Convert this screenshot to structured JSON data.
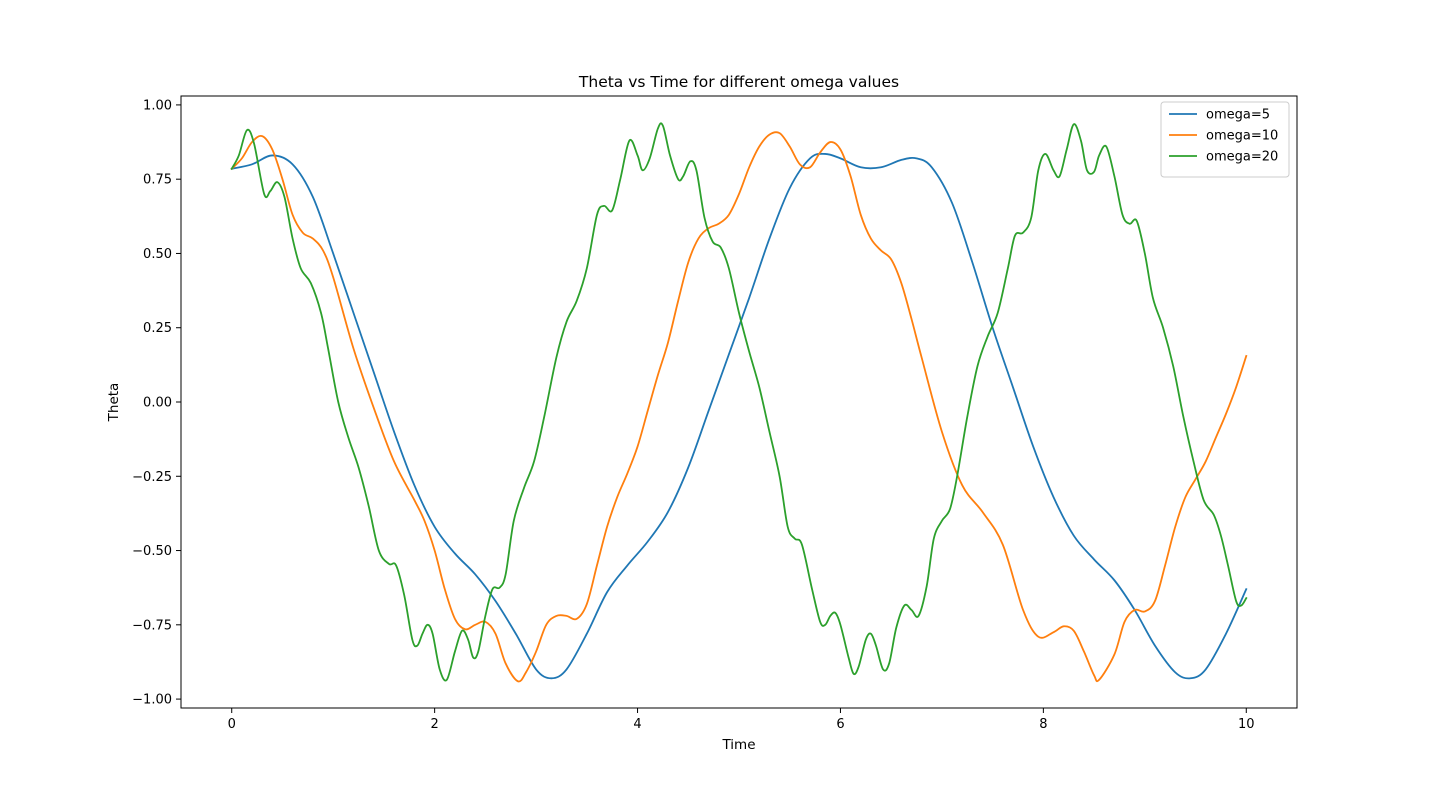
{
  "chart_data": {
    "type": "line",
    "title": "Theta vs Time for different omega values",
    "xlabel": "Time",
    "ylabel": "Theta",
    "xlim": [
      -0.5,
      10.5
    ],
    "ylim": [
      -1.03,
      1.03
    ],
    "x_ticks": [
      0,
      2,
      4,
      6,
      8,
      10
    ],
    "x_tick_labels": [
      "0",
      "2",
      "4",
      "6",
      "8",
      "10"
    ],
    "y_ticks": [
      -1.0,
      -0.75,
      -0.5,
      -0.25,
      0.0,
      0.25,
      0.5,
      0.75,
      1.0
    ],
    "y_tick_labels": [
      "−1.00",
      "−0.75",
      "−0.50",
      "−0.25",
      "0.00",
      "0.25",
      "0.50",
      "0.75",
      "1.00"
    ],
    "grid": false,
    "legend_position": "top-right",
    "series": [
      {
        "name": "omega=5",
        "color": "#1f77b4",
        "points": [
          [
            0,
            0.785
          ],
          [
            0.2,
            0.8
          ],
          [
            0.4,
            0.83
          ],
          [
            0.6,
            0.8
          ],
          [
            0.8,
            0.69
          ],
          [
            1.0,
            0.5
          ],
          [
            1.2,
            0.3
          ],
          [
            1.4,
            0.1
          ],
          [
            1.6,
            -0.1
          ],
          [
            1.8,
            -0.28
          ],
          [
            2.0,
            -0.42
          ],
          [
            2.2,
            -0.51
          ],
          [
            2.4,
            -0.58
          ],
          [
            2.6,
            -0.67
          ],
          [
            2.8,
            -0.78
          ],
          [
            3.0,
            -0.9
          ],
          [
            3.15,
            -0.93
          ],
          [
            3.3,
            -0.9
          ],
          [
            3.5,
            -0.78
          ],
          [
            3.7,
            -0.64
          ],
          [
            3.9,
            -0.55
          ],
          [
            4.1,
            -0.47
          ],
          [
            4.3,
            -0.37
          ],
          [
            4.5,
            -0.22
          ],
          [
            4.7,
            -0.03
          ],
          [
            4.9,
            0.16
          ],
          [
            5.1,
            0.35
          ],
          [
            5.3,
            0.55
          ],
          [
            5.5,
            0.72
          ],
          [
            5.7,
            0.82
          ],
          [
            5.85,
            0.835
          ],
          [
            6.0,
            0.82
          ],
          [
            6.2,
            0.79
          ],
          [
            6.4,
            0.79
          ],
          [
            6.6,
            0.815
          ],
          [
            6.75,
            0.82
          ],
          [
            6.9,
            0.79
          ],
          [
            7.1,
            0.67
          ],
          [
            7.3,
            0.47
          ],
          [
            7.5,
            0.25
          ],
          [
            7.7,
            0.05
          ],
          [
            7.9,
            -0.15
          ],
          [
            8.1,
            -0.32
          ],
          [
            8.3,
            -0.45
          ],
          [
            8.5,
            -0.53
          ],
          [
            8.7,
            -0.6
          ],
          [
            8.9,
            -0.7
          ],
          [
            9.1,
            -0.82
          ],
          [
            9.3,
            -0.91
          ],
          [
            9.45,
            -0.93
          ],
          [
            9.6,
            -0.9
          ],
          [
            9.8,
            -0.78
          ],
          [
            10.0,
            -0.63
          ]
        ]
      },
      {
        "name": "omega=10",
        "color": "#ff7f0e",
        "points": [
          [
            0,
            0.785
          ],
          [
            0.1,
            0.82
          ],
          [
            0.2,
            0.875
          ],
          [
            0.3,
            0.895
          ],
          [
            0.4,
            0.85
          ],
          [
            0.5,
            0.75
          ],
          [
            0.6,
            0.63
          ],
          [
            0.7,
            0.57
          ],
          [
            0.8,
            0.55
          ],
          [
            0.9,
            0.51
          ],
          [
            1.0,
            0.42
          ],
          [
            1.2,
            0.18
          ],
          [
            1.4,
            -0.02
          ],
          [
            1.6,
            -0.2
          ],
          [
            1.8,
            -0.33
          ],
          [
            1.9,
            -0.4
          ],
          [
            2.0,
            -0.5
          ],
          [
            2.1,
            -0.63
          ],
          [
            2.2,
            -0.73
          ],
          [
            2.3,
            -0.765
          ],
          [
            2.4,
            -0.75
          ],
          [
            2.5,
            -0.74
          ],
          [
            2.6,
            -0.78
          ],
          [
            2.7,
            -0.88
          ],
          [
            2.82,
            -0.94
          ],
          [
            2.9,
            -0.91
          ],
          [
            3.0,
            -0.84
          ],
          [
            3.1,
            -0.75
          ],
          [
            3.2,
            -0.72
          ],
          [
            3.3,
            -0.72
          ],
          [
            3.4,
            -0.73
          ],
          [
            3.5,
            -0.68
          ],
          [
            3.6,
            -0.55
          ],
          [
            3.7,
            -0.42
          ],
          [
            3.8,
            -0.32
          ],
          [
            3.9,
            -0.24
          ],
          [
            4.0,
            -0.15
          ],
          [
            4.1,
            -0.03
          ],
          [
            4.2,
            0.09
          ],
          [
            4.3,
            0.2
          ],
          [
            4.4,
            0.34
          ],
          [
            4.5,
            0.47
          ],
          [
            4.6,
            0.55
          ],
          [
            4.7,
            0.585
          ],
          [
            4.8,
            0.6
          ],
          [
            4.9,
            0.63
          ],
          [
            5.0,
            0.7
          ],
          [
            5.1,
            0.79
          ],
          [
            5.2,
            0.86
          ],
          [
            5.3,
            0.9
          ],
          [
            5.4,
            0.905
          ],
          [
            5.5,
            0.86
          ],
          [
            5.6,
            0.8
          ],
          [
            5.7,
            0.79
          ],
          [
            5.8,
            0.84
          ],
          [
            5.9,
            0.875
          ],
          [
            6.0,
            0.85
          ],
          [
            6.1,
            0.76
          ],
          [
            6.2,
            0.63
          ],
          [
            6.3,
            0.55
          ],
          [
            6.4,
            0.51
          ],
          [
            6.5,
            0.48
          ],
          [
            6.6,
            0.4
          ],
          [
            6.7,
            0.28
          ],
          [
            6.8,
            0.15
          ],
          [
            7.0,
            -0.1
          ],
          [
            7.2,
            -0.28
          ],
          [
            7.4,
            -0.37
          ],
          [
            7.6,
            -0.48
          ],
          [
            7.8,
            -0.7
          ],
          [
            7.95,
            -0.79
          ],
          [
            8.1,
            -0.775
          ],
          [
            8.2,
            -0.755
          ],
          [
            8.3,
            -0.77
          ],
          [
            8.4,
            -0.84
          ],
          [
            8.5,
            -0.92
          ],
          [
            8.55,
            -0.935
          ],
          [
            8.7,
            -0.85
          ],
          [
            8.8,
            -0.74
          ],
          [
            8.9,
            -0.7
          ],
          [
            9.0,
            -0.705
          ],
          [
            9.1,
            -0.67
          ],
          [
            9.2,
            -0.55
          ],
          [
            9.3,
            -0.42
          ],
          [
            9.4,
            -0.32
          ],
          [
            9.5,
            -0.26
          ],
          [
            9.6,
            -0.2
          ],
          [
            9.7,
            -0.12
          ],
          [
            9.8,
            -0.04
          ],
          [
            9.9,
            0.05
          ],
          [
            10.0,
            0.155
          ]
        ]
      },
      {
        "name": "omega=20",
        "color": "#2ca02c",
        "points": [
          [
            0,
            0.785
          ],
          [
            0.07,
            0.83
          ],
          [
            0.15,
            0.915
          ],
          [
            0.22,
            0.87
          ],
          [
            0.32,
            0.7
          ],
          [
            0.38,
            0.71
          ],
          [
            0.45,
            0.74
          ],
          [
            0.52,
            0.69
          ],
          [
            0.6,
            0.55
          ],
          [
            0.68,
            0.45
          ],
          [
            0.78,
            0.4
          ],
          [
            0.88,
            0.3
          ],
          [
            0.95,
            0.18
          ],
          [
            1.05,
            0.0
          ],
          [
            1.15,
            -0.12
          ],
          [
            1.25,
            -0.22
          ],
          [
            1.35,
            -0.35
          ],
          [
            1.45,
            -0.5
          ],
          [
            1.55,
            -0.545
          ],
          [
            1.62,
            -0.55
          ],
          [
            1.7,
            -0.65
          ],
          [
            1.78,
            -0.8
          ],
          [
            1.83,
            -0.82
          ],
          [
            1.88,
            -0.78
          ],
          [
            1.93,
            -0.75
          ],
          [
            1.98,
            -0.78
          ],
          [
            2.05,
            -0.9
          ],
          [
            2.12,
            -0.935
          ],
          [
            2.2,
            -0.84
          ],
          [
            2.27,
            -0.77
          ],
          [
            2.33,
            -0.8
          ],
          [
            2.38,
            -0.86
          ],
          [
            2.43,
            -0.84
          ],
          [
            2.5,
            -0.72
          ],
          [
            2.57,
            -0.63
          ],
          [
            2.64,
            -0.625
          ],
          [
            2.7,
            -0.58
          ],
          [
            2.78,
            -0.4
          ],
          [
            2.88,
            -0.29
          ],
          [
            2.98,
            -0.2
          ],
          [
            3.08,
            -0.05
          ],
          [
            3.2,
            0.15
          ],
          [
            3.3,
            0.27
          ],
          [
            3.4,
            0.34
          ],
          [
            3.5,
            0.45
          ],
          [
            3.6,
            0.63
          ],
          [
            3.67,
            0.66
          ],
          [
            3.75,
            0.645
          ],
          [
            3.83,
            0.75
          ],
          [
            3.92,
            0.88
          ],
          [
            4.0,
            0.83
          ],
          [
            4.05,
            0.78
          ],
          [
            4.12,
            0.82
          ],
          [
            4.2,
            0.92
          ],
          [
            4.25,
            0.93
          ],
          [
            4.32,
            0.83
          ],
          [
            4.4,
            0.75
          ],
          [
            4.45,
            0.76
          ],
          [
            4.52,
            0.81
          ],
          [
            4.58,
            0.78
          ],
          [
            4.66,
            0.62
          ],
          [
            4.74,
            0.54
          ],
          [
            4.82,
            0.52
          ],
          [
            4.9,
            0.45
          ],
          [
            5.0,
            0.3
          ],
          [
            5.1,
            0.17
          ],
          [
            5.2,
            0.05
          ],
          [
            5.3,
            -0.1
          ],
          [
            5.4,
            -0.25
          ],
          [
            5.48,
            -0.42
          ],
          [
            5.55,
            -0.46
          ],
          [
            5.62,
            -0.48
          ],
          [
            5.72,
            -0.63
          ],
          [
            5.8,
            -0.74
          ],
          [
            5.85,
            -0.75
          ],
          [
            5.9,
            -0.72
          ],
          [
            5.95,
            -0.71
          ],
          [
            6.0,
            -0.75
          ],
          [
            6.08,
            -0.86
          ],
          [
            6.13,
            -0.915
          ],
          [
            6.18,
            -0.89
          ],
          [
            6.25,
            -0.8
          ],
          [
            6.3,
            -0.78
          ],
          [
            6.35,
            -0.82
          ],
          [
            6.42,
            -0.9
          ],
          [
            6.48,
            -0.88
          ],
          [
            6.55,
            -0.76
          ],
          [
            6.63,
            -0.685
          ],
          [
            6.7,
            -0.7
          ],
          [
            6.77,
            -0.72
          ],
          [
            6.85,
            -0.62
          ],
          [
            6.92,
            -0.46
          ],
          [
            7.0,
            -0.4
          ],
          [
            7.08,
            -0.36
          ],
          [
            7.15,
            -0.25
          ],
          [
            7.25,
            -0.05
          ],
          [
            7.35,
            0.12
          ],
          [
            7.45,
            0.22
          ],
          [
            7.55,
            0.3
          ],
          [
            7.65,
            0.45
          ],
          [
            7.72,
            0.56
          ],
          [
            7.8,
            0.57
          ],
          [
            7.88,
            0.62
          ],
          [
            7.95,
            0.78
          ],
          [
            8.02,
            0.835
          ],
          [
            8.1,
            0.78
          ],
          [
            8.16,
            0.76
          ],
          [
            8.23,
            0.85
          ],
          [
            8.3,
            0.935
          ],
          [
            8.37,
            0.88
          ],
          [
            8.43,
            0.78
          ],
          [
            8.5,
            0.775
          ],
          [
            8.55,
            0.83
          ],
          [
            8.62,
            0.86
          ],
          [
            8.7,
            0.76
          ],
          [
            8.78,
            0.63
          ],
          [
            8.85,
            0.6
          ],
          [
            8.92,
            0.61
          ],
          [
            9.0,
            0.5
          ],
          [
            9.08,
            0.35
          ],
          [
            9.18,
            0.25
          ],
          [
            9.28,
            0.12
          ],
          [
            9.38,
            -0.05
          ],
          [
            9.48,
            -0.2
          ],
          [
            9.58,
            -0.33
          ],
          [
            9.68,
            -0.38
          ],
          [
            9.75,
            -0.45
          ],
          [
            9.82,
            -0.55
          ],
          [
            9.9,
            -0.67
          ],
          [
            9.95,
            -0.685
          ],
          [
            10.0,
            -0.66
          ]
        ]
      }
    ]
  }
}
